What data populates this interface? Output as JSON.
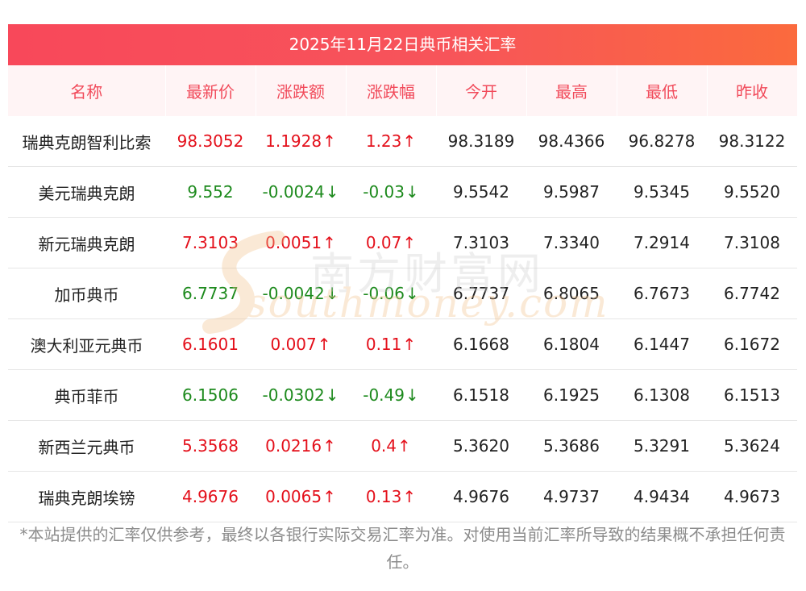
{
  "title": "2025年11月22日典币相关汇率",
  "headers": [
    "名称",
    "最新价",
    "涨跌额",
    "涨跌幅",
    "今开",
    "最高",
    "最低",
    "昨收"
  ],
  "rows": [
    {
      "name": "瑞典克朗智利比索",
      "latest": "98.3052",
      "change": "1.1928",
      "pct": "1.23",
      "dir": "up",
      "open": "98.3189",
      "high": "98.4366",
      "low": "96.8278",
      "prev": "98.3122"
    },
    {
      "name": "美元瑞典克朗",
      "latest": "9.552",
      "change": "-0.0024",
      "pct": "-0.03",
      "dir": "down",
      "open": "9.5542",
      "high": "9.5987",
      "low": "9.5345",
      "prev": "9.5520"
    },
    {
      "name": "新元瑞典克朗",
      "latest": "7.3103",
      "change": "0.0051",
      "pct": "0.07",
      "dir": "up",
      "open": "7.3103",
      "high": "7.3340",
      "low": "7.2914",
      "prev": "7.3108"
    },
    {
      "name": "加币典币",
      "latest": "6.7737",
      "change": "-0.0042",
      "pct": "-0.06",
      "dir": "down",
      "open": "6.7737",
      "high": "6.8065",
      "low": "6.7673",
      "prev": "6.7742"
    },
    {
      "name": "澳大利亚元典币",
      "latest": "6.1601",
      "change": "0.007",
      "pct": "0.11",
      "dir": "up",
      "open": "6.1668",
      "high": "6.1804",
      "low": "6.1447",
      "prev": "6.1672"
    },
    {
      "name": "典币菲币",
      "latest": "6.1506",
      "change": "-0.0302",
      "pct": "-0.49",
      "dir": "down",
      "open": "6.1518",
      "high": "6.1925",
      "low": "6.1308",
      "prev": "6.1513"
    },
    {
      "name": "新西兰元典币",
      "latest": "5.3568",
      "change": "0.0216",
      "pct": "0.4",
      "dir": "up",
      "open": "5.3620",
      "high": "5.3686",
      "low": "5.3291",
      "prev": "5.3624"
    },
    {
      "name": "瑞典克朗埃镑",
      "latest": "4.9676",
      "change": "0.0065",
      "pct": "0.13",
      "dir": "up",
      "open": "4.9676",
      "high": "4.9737",
      "low": "4.9434",
      "prev": "4.9673"
    }
  ],
  "arrows": {
    "up": "↑",
    "down": "↓"
  },
  "colors": {
    "up": "#e4101b",
    "down": "#1d8a1d",
    "header_text": "#f14a5a",
    "header_bg": "#fff4f5",
    "title_start": "#f8485a",
    "title_end": "#fb6a3d"
  },
  "watermark": {
    "cn": "南方财富网",
    "en": "southmoney.com"
  },
  "note": "*本站提供的汇率仅供参考，最终以各银行实际交易汇率为准。对使用当前汇率所导致的结果概不承担任何责任。"
}
